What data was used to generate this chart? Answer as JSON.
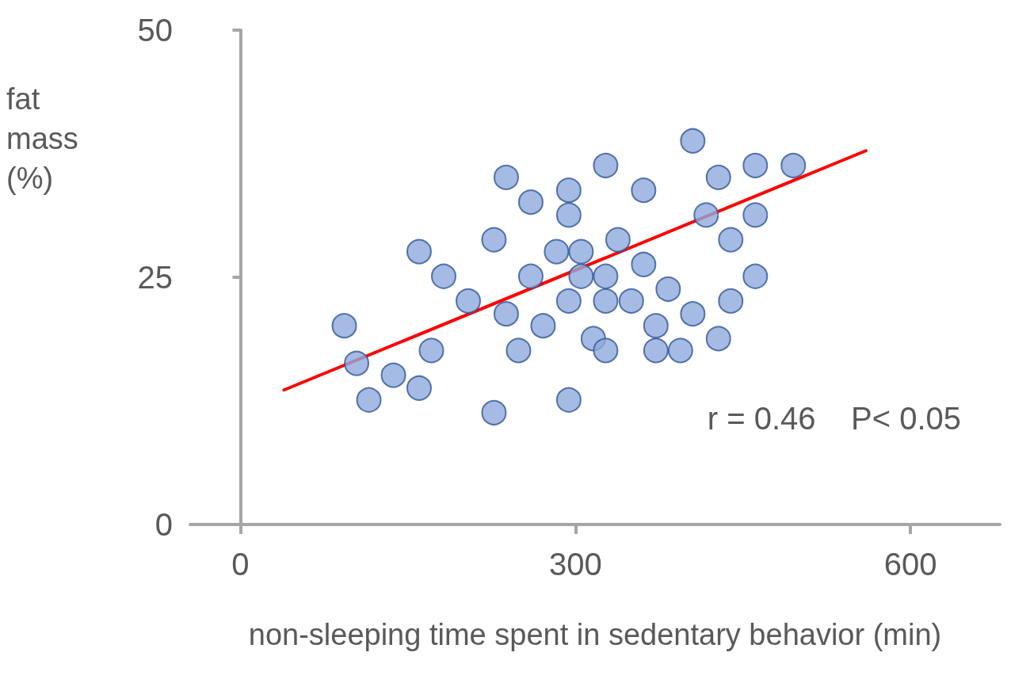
{
  "chart_data": {
    "type": "scatter",
    "xlabel": "non-sleeping time spent in sedentary behavior (min)",
    "ylabel": "fat mass (%)",
    "xlim": [
      -45,
      680
    ],
    "xticks": [
      0,
      300,
      600
    ],
    "ylim": [
      0,
      50
    ],
    "yticks": [
      0,
      25,
      50
    ],
    "grid": false,
    "marker": "circle",
    "annotations": [
      "r = 0.46    P< 0.05"
    ],
    "series": [
      {
        "type": "scatter",
        "color": "#8faadc",
        "x": [
          93,
          104,
          115,
          137,
          160,
          160,
          171,
          182,
          204,
          227,
          227,
          238,
          238,
          249,
          260,
          260,
          271,
          283,
          294,
          294,
          294,
          294,
          305,
          305,
          316,
          327,
          327,
          327,
          327,
          338,
          350,
          361,
          361,
          372,
          372,
          383,
          394,
          405,
          405,
          417,
          428,
          428,
          439,
          439,
          461,
          461,
          461,
          495
        ],
        "values": [
          20.1,
          16.3,
          12.6,
          15.1,
          13.8,
          27.6,
          17.6,
          25.1,
          22.6,
          28.8,
          11.3,
          35.1,
          21.3,
          17.6,
          32.6,
          25.1,
          20.1,
          27.6,
          33.8,
          31.3,
          22.6,
          12.6,
          27.6,
          25.1,
          18.8,
          36.3,
          25.1,
          22.6,
          17.6,
          28.8,
          22.6,
          33.8,
          26.3,
          20.1,
          17.6,
          23.8,
          17.6,
          38.8,
          21.3,
          31.3,
          35.1,
          18.8,
          28.8,
          22.6,
          36.3,
          31.3,
          25.1,
          36.3
        ]
      },
      {
        "type": "line",
        "color": "#ff0000",
        "x": [
          39,
          560
        ],
        "values": [
          13.6,
          37.8
        ],
        "marker": "none",
        "line_style": "solid"
      }
    ]
  }
}
